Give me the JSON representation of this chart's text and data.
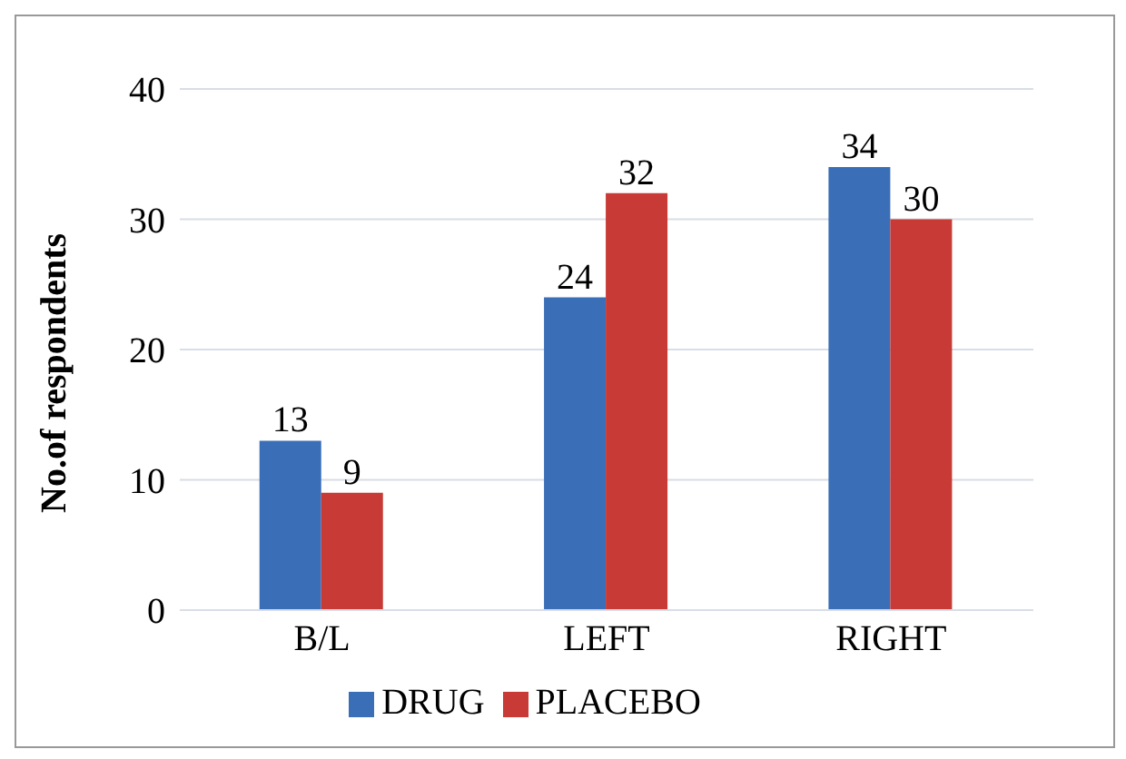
{
  "chart_data": {
    "type": "bar",
    "ylabel": "No.of respondents",
    "categories": [
      "B/L",
      "LEFT",
      "RIGHT"
    ],
    "series": [
      {
        "name": "DRUG",
        "color": "#3a6fb8",
        "values": [
          13,
          24,
          34
        ]
      },
      {
        "name": "PLACEBO",
        "color": "#c83a35",
        "values": [
          9,
          32,
          30
        ]
      }
    ],
    "ylim": [
      0,
      40
    ],
    "yticks": [
      0,
      10,
      20,
      30,
      40
    ],
    "grid": "y",
    "legend": "bottom",
    "data_labels": true
  }
}
